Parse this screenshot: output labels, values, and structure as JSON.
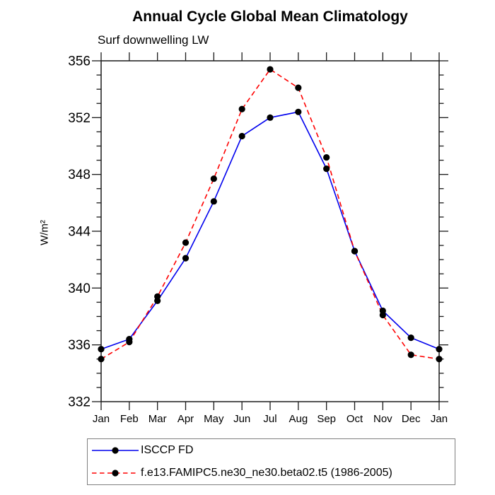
{
  "chart_data": {
    "type": "line",
    "title": "Annual Cycle Global Mean Climatology",
    "subtitle": "Surf downwelling LW",
    "ylabel": "W/m²",
    "xlabel": "",
    "categories": [
      "Jan",
      "Feb",
      "Mar",
      "Apr",
      "May",
      "Jun",
      "Jul",
      "Aug",
      "Sep",
      "Oct",
      "Nov",
      "Dec",
      "Jan"
    ],
    "series": [
      {
        "name": "ISCCP FD",
        "color": "#0000ee",
        "line_style": "solid",
        "marker": "circle",
        "values": [
          335.7,
          336.4,
          339.1,
          342.1,
          346.1,
          350.7,
          352.0,
          352.4,
          348.4,
          342.6,
          338.4,
          336.5,
          335.7
        ]
      },
      {
        "name": "f.e13.FAMIPC5.ne30_ne30.beta02.t5 (1986-2005)",
        "color": "#ff0000",
        "line_style": "dashed",
        "marker": "circle",
        "values": [
          335.0,
          336.2,
          339.4,
          343.2,
          347.7,
          352.6,
          355.4,
          354.1,
          349.2,
          342.6,
          338.1,
          335.3,
          335.0
        ]
      }
    ],
    "marker_color": "#000000",
    "axis_color": "#1a1a1a",
    "ylim": [
      332,
      356
    ],
    "ytick_major": [
      332,
      336,
      340,
      344,
      348,
      352,
      356
    ],
    "ytick_minor_step": 1,
    "grid": false,
    "legend_position": "bottom-left"
  }
}
